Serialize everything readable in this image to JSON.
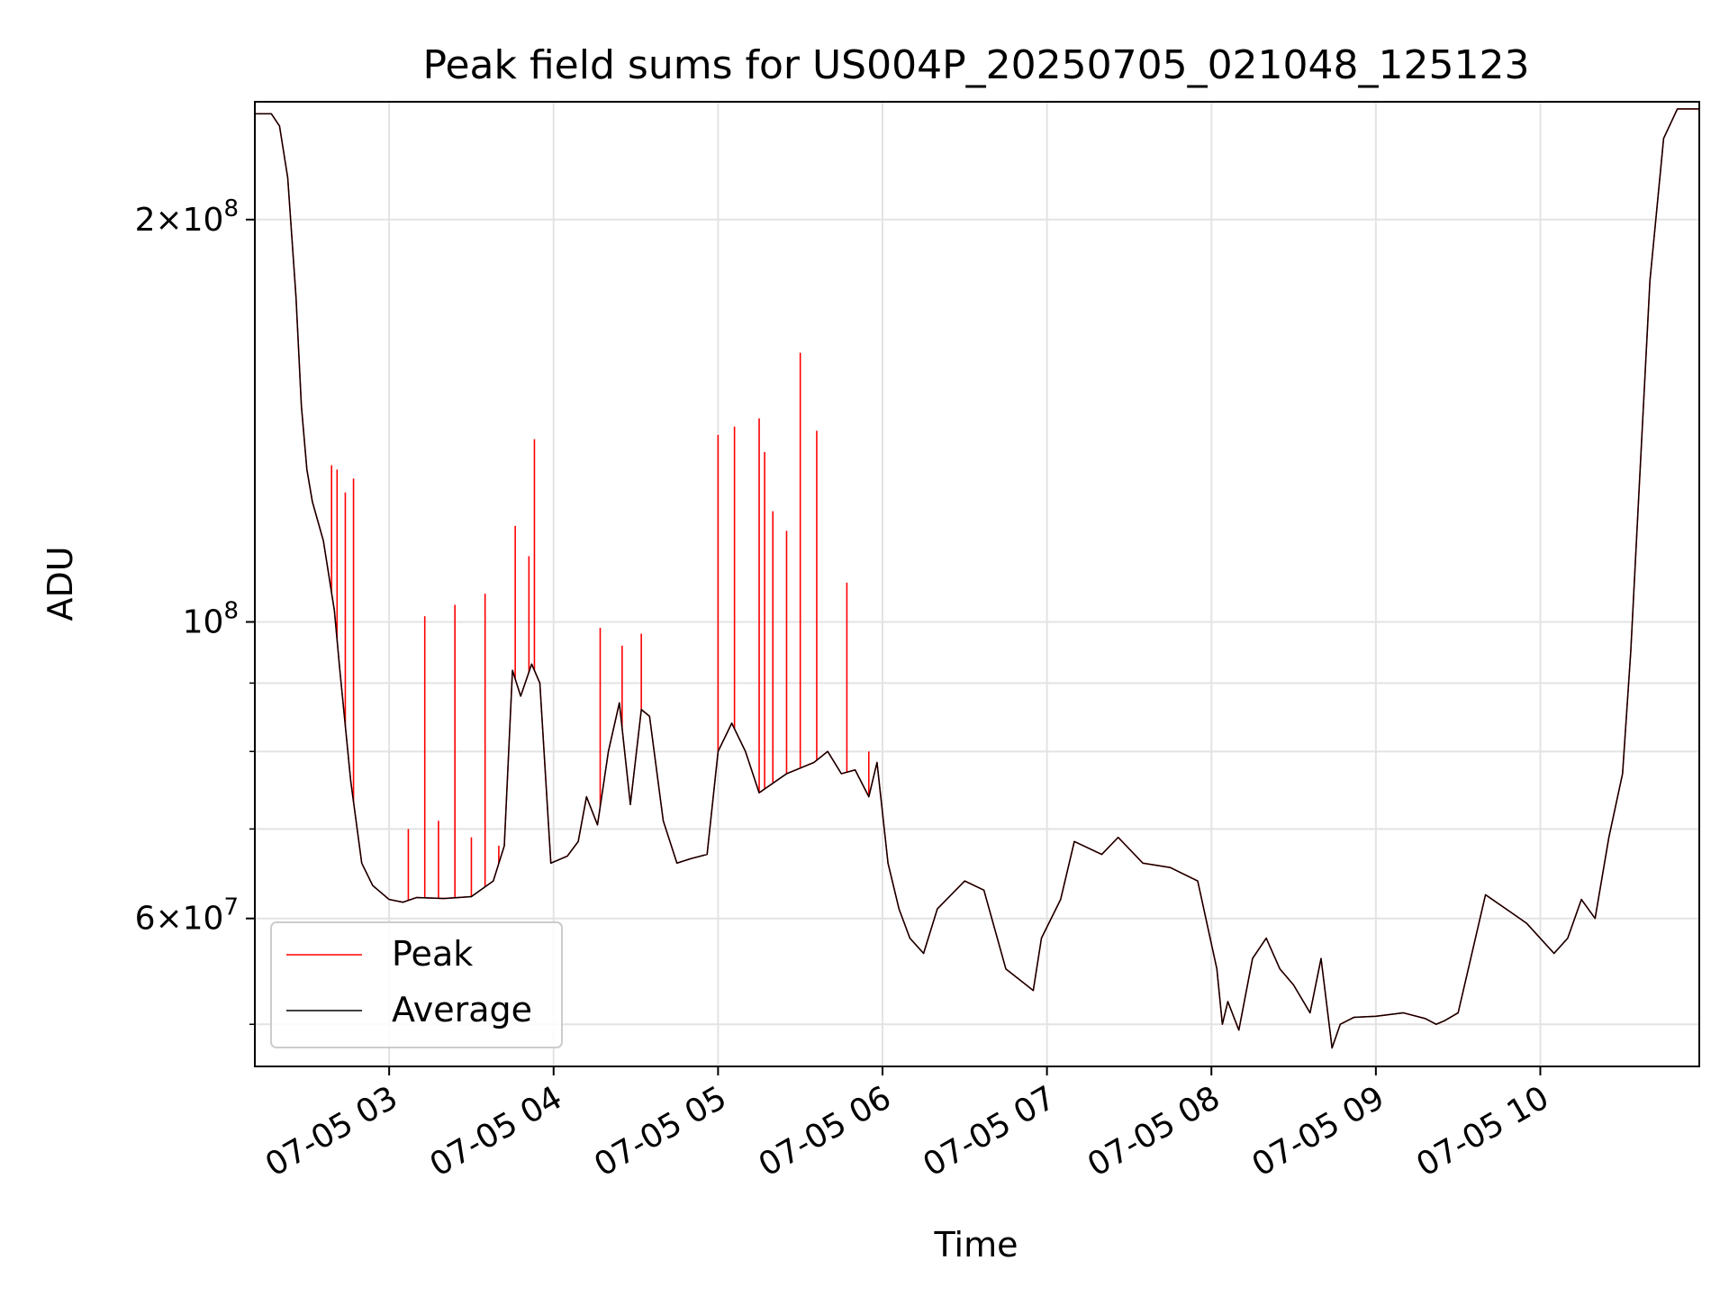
{
  "chart_data": {
    "type": "line",
    "title": "Peak field sums for US004P_20250705_021048_125123",
    "xlabel": "Time",
    "ylabel": "ADU",
    "y_scale": "log",
    "ylim": [
      46500000,
      245000000
    ],
    "xlim": [
      "2025-07-05 02:11",
      "2025-07-05 10:58"
    ],
    "grid": true,
    "legend_position": "lower-left",
    "x_tick_labels": [
      "07-05 03",
      "07-05 04",
      "07-05 05",
      "07-05 06",
      "07-05 07",
      "07-05 08",
      "07-05 09",
      "07-05 10"
    ],
    "x_ticks": [
      "2025-07-05 03:00",
      "2025-07-05 04:00",
      "2025-07-05 05:00",
      "2025-07-05 06:00",
      "2025-07-05 07:00",
      "2025-07-05 08:00",
      "2025-07-05 09:00",
      "2025-07-05 10:00"
    ],
    "y_major_ticks": [
      {
        "value": 60000000,
        "mantissa": "6",
        "exp": "7"
      },
      {
        "value": 100000000,
        "mantissa": "",
        "exp": "8"
      },
      {
        "value": 200000000,
        "mantissa": "2",
        "exp": "8"
      }
    ],
    "y_minor_ticks": [
      50000000,
      70000000,
      80000000,
      90000000,
      300000000
    ],
    "series": [
      {
        "name": "Average",
        "color": "#000000",
        "x": [
          "2025-07-05 02:11",
          "2025-07-05 02:17",
          "2025-07-05 02:20",
          "2025-07-05 02:23",
          "2025-07-05 02:26",
          "2025-07-05 02:28",
          "2025-07-05 02:30",
          "2025-07-05 02:32",
          "2025-07-05 02:36",
          "2025-07-05 02:40",
          "2025-07-05 02:42",
          "2025-07-05 02:46",
          "2025-07-05 02:50",
          "2025-07-05 02:54",
          "2025-07-05 03:00",
          "2025-07-05 03:05",
          "2025-07-05 03:10",
          "2025-07-05 03:20",
          "2025-07-05 03:30",
          "2025-07-05 03:38",
          "2025-07-05 03:42",
          "2025-07-05 03:45",
          "2025-07-05 03:48",
          "2025-07-05 03:52",
          "2025-07-05 03:55",
          "2025-07-05 03:59",
          "2025-07-05 04:05",
          "2025-07-05 04:09",
          "2025-07-05 04:12",
          "2025-07-05 04:16",
          "2025-07-05 04:20",
          "2025-07-05 04:24",
          "2025-07-05 04:28",
          "2025-07-05 04:32",
          "2025-07-05 04:35",
          "2025-07-05 04:40",
          "2025-07-05 04:45",
          "2025-07-05 04:50",
          "2025-07-05 04:56",
          "2025-07-05 05:00",
          "2025-07-05 05:05",
          "2025-07-05 05:10",
          "2025-07-05 05:15",
          "2025-07-05 05:25",
          "2025-07-05 05:35",
          "2025-07-05 05:40",
          "2025-07-05 05:45",
          "2025-07-05 05:50",
          "2025-07-05 05:55",
          "2025-07-05 05:58",
          "2025-07-05 06:02",
          "2025-07-05 06:06",
          "2025-07-05 06:10",
          "2025-07-05 06:15",
          "2025-07-05 06:20",
          "2025-07-05 06:30",
          "2025-07-05 06:37",
          "2025-07-05 06:45",
          "2025-07-05 06:55",
          "2025-07-05 06:58",
          "2025-07-05 07:05",
          "2025-07-05 07:10",
          "2025-07-05 07:20",
          "2025-07-05 07:26",
          "2025-07-05 07:35",
          "2025-07-05 07:45",
          "2025-07-05 07:55",
          "2025-07-05 08:02",
          "2025-07-05 08:04",
          "2025-07-05 08:06",
          "2025-07-05 08:10",
          "2025-07-05 08:15",
          "2025-07-05 08:20",
          "2025-07-05 08:25",
          "2025-07-05 08:30",
          "2025-07-05 08:36",
          "2025-07-05 08:40",
          "2025-07-05 08:44",
          "2025-07-05 08:47",
          "2025-07-05 08:52",
          "2025-07-05 09:00",
          "2025-07-05 09:10",
          "2025-07-05 09:18",
          "2025-07-05 09:22",
          "2025-07-05 09:25",
          "2025-07-05 09:30",
          "2025-07-05 09:40",
          "2025-07-05 09:50",
          "2025-07-05 09:55",
          "2025-07-05 10:05",
          "2025-07-05 10:10",
          "2025-07-05 10:15",
          "2025-07-05 10:20",
          "2025-07-05 10:25",
          "2025-07-05 10:30",
          "2025-07-05 10:33",
          "2025-07-05 10:36",
          "2025-07-05 10:40",
          "2025-07-05 10:45",
          "2025-07-05 10:50",
          "2025-07-05 10:58"
        ],
        "y": [
          240000000,
          240000000,
          235000000,
          215000000,
          175000000,
          145000000,
          130000000,
          123000000,
          115000000,
          102000000,
          92000000,
          76000000,
          66000000,
          63500000,
          62000000,
          61700000,
          62200000,
          62100000,
          62300000,
          64000000,
          68000000,
          92000000,
          88000000,
          93000000,
          90000000,
          66000000,
          66800000,
          68500000,
          74000000,
          70500000,
          80000000,
          87000000,
          73000000,
          86000000,
          85000000,
          71000000,
          66000000,
          66500000,
          67000000,
          80000000,
          84000000,
          80000000,
          74500000,
          77000000,
          78500000,
          80000000,
          77000000,
          77500000,
          74000000,
          78500000,
          66000000,
          61000000,
          58000000,
          56500000,
          61000000,
          64000000,
          63000000,
          55000000,
          53000000,
          58000000,
          62000000,
          68500000,
          67000000,
          69000000,
          66000000,
          65500000,
          64000000,
          55000000,
          50000000,
          52000000,
          49500000,
          56000000,
          58000000,
          55000000,
          53500000,
          51000000,
          56000000,
          48000000,
          50000000,
          50600000,
          50700000,
          51000000,
          50500000,
          50000000,
          50300000,
          51000000,
          62500000,
          60500000,
          59500000,
          56500000,
          58000000,
          62000000,
          60000000,
          69000000,
          77000000,
          95000000,
          125000000,
          180000000,
          230000000,
          242000000,
          242000000
        ]
      },
      {
        "name": "Peak",
        "color": "#ff0000",
        "spikes": [
          {
            "x": "2025-07-05 02:39",
            "y": 131000000
          },
          {
            "x": "2025-07-05 02:41",
            "y": 130000000
          },
          {
            "x": "2025-07-05 02:44",
            "y": 125000000
          },
          {
            "x": "2025-07-05 02:47",
            "y": 128000000
          },
          {
            "x": "2025-07-05 03:07",
            "y": 70000000
          },
          {
            "x": "2025-07-05 03:13",
            "y": 101000000
          },
          {
            "x": "2025-07-05 03:18",
            "y": 71000000
          },
          {
            "x": "2025-07-05 03:24",
            "y": 103000000
          },
          {
            "x": "2025-07-05 03:30",
            "y": 69000000
          },
          {
            "x": "2025-07-05 03:35",
            "y": 105000000
          },
          {
            "x": "2025-07-05 03:40",
            "y": 68000000
          },
          {
            "x": "2025-07-05 03:46",
            "y": 118000000
          },
          {
            "x": "2025-07-05 03:51",
            "y": 112000000
          },
          {
            "x": "2025-07-05 03:53",
            "y": 137000000
          },
          {
            "x": "2025-07-05 04:17",
            "y": 99000000
          },
          {
            "x": "2025-07-05 04:25",
            "y": 96000000
          },
          {
            "x": "2025-07-05 04:32",
            "y": 98000000
          },
          {
            "x": "2025-07-05 05:00",
            "y": 138000000
          },
          {
            "x": "2025-07-05 05:06",
            "y": 140000000
          },
          {
            "x": "2025-07-05 05:15",
            "y": 142000000
          },
          {
            "x": "2025-07-05 05:17",
            "y": 134000000
          },
          {
            "x": "2025-07-05 05:20",
            "y": 121000000
          },
          {
            "x": "2025-07-05 05:25",
            "y": 117000000
          },
          {
            "x": "2025-07-05 05:30",
            "y": 159000000
          },
          {
            "x": "2025-07-05 05:36",
            "y": 139000000
          },
          {
            "x": "2025-07-05 05:47",
            "y": 107000000
          },
          {
            "x": "2025-07-05 05:55",
            "y": 80000000
          }
        ]
      }
    ]
  }
}
